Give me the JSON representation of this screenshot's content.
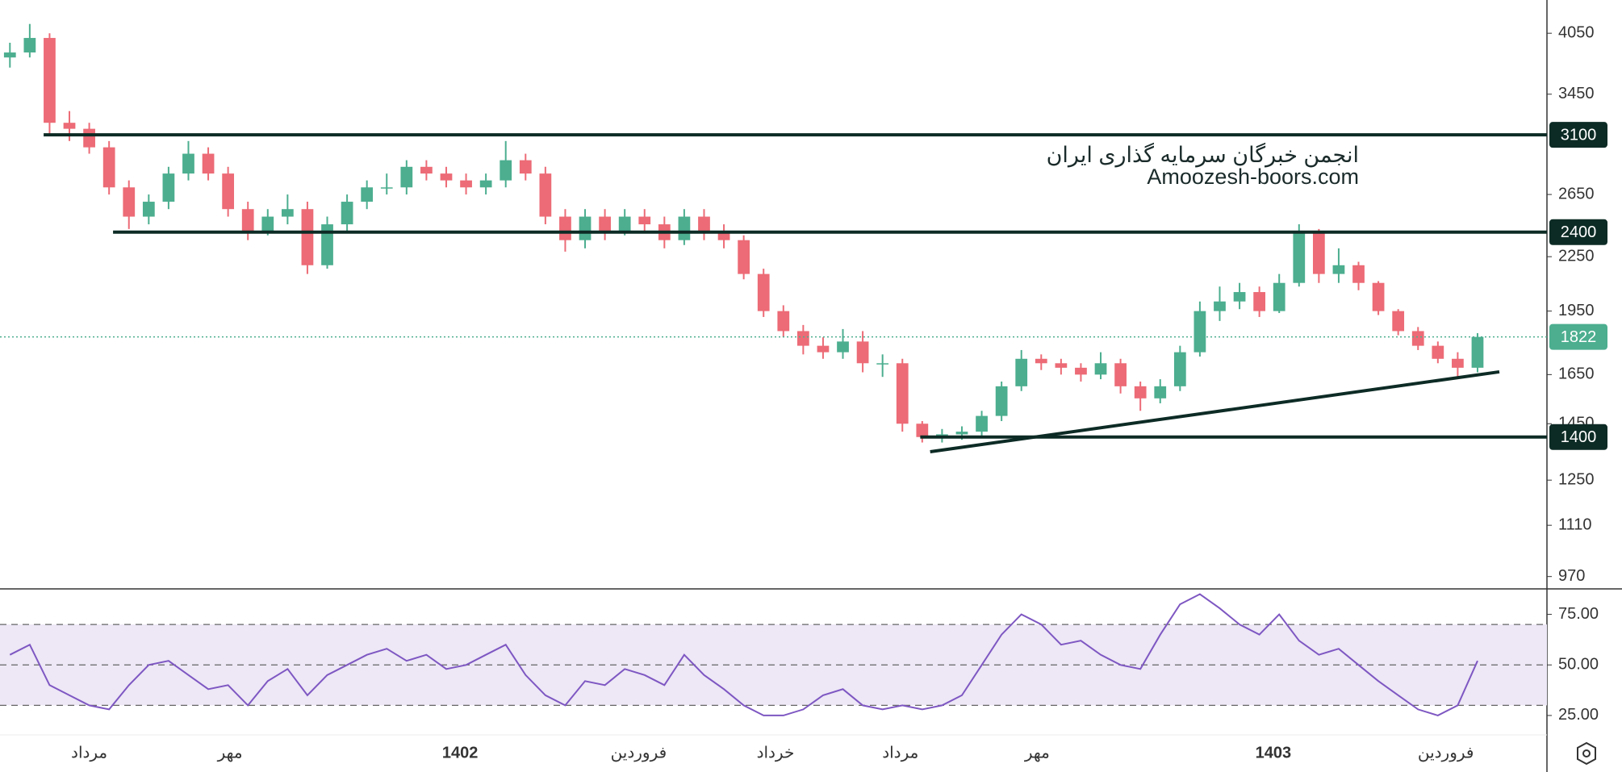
{
  "chart_data": [
    {
      "type": "candlestick",
      "log_scale": true,
      "ylim": [
        943,
        4420
      ],
      "xlim": [
        -0.5,
        77.5
      ],
      "up_color": "#4cae8f",
      "down_color": "#ec6b76",
      "watermark": [
        "انجمن خبرگان سرمایه گذاری ایران",
        "Amoozesh-boors.com"
      ],
      "open": [
        3800,
        3850,
        4000,
        3200,
        3150,
        3000,
        2700,
        2500,
        2600,
        2800,
        2950,
        2800,
        2550,
        2400,
        2500,
        2550,
        2200,
        2450,
        2600,
        2700,
        2700,
        2850,
        2800,
        2750,
        2700,
        2750,
        2900,
        2800,
        2500,
        2350,
        2500,
        2400,
        2500,
        2450,
        2350,
        2500,
        2400,
        2350,
        2150,
        1950,
        1850,
        1780,
        1750,
        1800,
        1700,
        1700,
        1450,
        1400,
        1410,
        1420,
        1480,
        1600,
        1720,
        1700,
        1680,
        1650,
        1700,
        1600,
        1550,
        1600,
        1750,
        1950,
        2000,
        2050,
        1950,
        2100,
        2400,
        2150,
        2200,
        2100,
        1950,
        1850,
        1780,
        1720,
        1680
      ],
      "high": [
        3950,
        4150,
        4050,
        3300,
        3200,
        3050,
        2750,
        2650,
        2850,
        3050,
        3000,
        2850,
        2600,
        2550,
        2650,
        2600,
        2500,
        2650,
        2750,
        2800,
        2900,
        2900,
        2850,
        2800,
        2800,
        3050,
        2950,
        2850,
        2550,
        2550,
        2550,
        2550,
        2550,
        2500,
        2550,
        2550,
        2450,
        2380,
        2180,
        1980,
        1880,
        1820,
        1860,
        1850,
        1740,
        1720,
        1460,
        1430,
        1440,
        1500,
        1620,
        1760,
        1740,
        1720,
        1700,
        1750,
        1720,
        1620,
        1630,
        1780,
        2000,
        2080,
        2100,
        2080,
        2150,
        2450,
        2420,
        2300,
        2220,
        2110,
        1960,
        1870,
        1800,
        1750,
        1840
      ],
      "low": [
        3700,
        3800,
        3100,
        3050,
        2950,
        2650,
        2420,
        2450,
        2550,
        2750,
        2750,
        2500,
        2350,
        2380,
        2450,
        2150,
        2180,
        2400,
        2550,
        2650,
        2650,
        2750,
        2700,
        2650,
        2650,
        2700,
        2750,
        2450,
        2280,
        2300,
        2350,
        2380,
        2400,
        2300,
        2320,
        2350,
        2300,
        2120,
        1920,
        1820,
        1740,
        1720,
        1720,
        1660,
        1640,
        1420,
        1380,
        1380,
        1390,
        1400,
        1460,
        1580,
        1670,
        1650,
        1620,
        1630,
        1570,
        1500,
        1530,
        1580,
        1730,
        1900,
        1960,
        1920,
        1940,
        2080,
        2100,
        2100,
        2060,
        1930,
        1830,
        1760,
        1700,
        1640,
        1660
      ],
      "close": [
        3850,
        4000,
        3200,
        3150,
        3000,
        2700,
        2500,
        2600,
        2800,
        2950,
        2800,
        2550,
        2400,
        2500,
        2550,
        2200,
        2450,
        2600,
        2700,
        2700,
        2850,
        2800,
        2750,
        2700,
        2750,
        2900,
        2800,
        2500,
        2350,
        2500,
        2400,
        2500,
        2450,
        2350,
        2500,
        2400,
        2350,
        2150,
        1950,
        1850,
        1780,
        1750,
        1800,
        1700,
        1700,
        1450,
        1400,
        1410,
        1420,
        1480,
        1600,
        1720,
        1700,
        1680,
        1650,
        1700,
        1600,
        1550,
        1600,
        1750,
        1950,
        2000,
        2050,
        1950,
        2100,
        2400,
        2150,
        2200,
        2100,
        1950,
        1850,
        1780,
        1720,
        1680,
        1822
      ],
      "last_color": "#4cae8f",
      "yticks": [
        4050,
        3450,
        2650,
        2250,
        1950,
        1650,
        1450,
        1250,
        1110,
        970
      ],
      "levels": [
        {
          "value": 3100,
          "from": 1.7
        },
        {
          "value": 2400,
          "from": 5.2
        },
        {
          "value": 1400,
          "from": 45.9
        }
      ],
      "trendline": {
        "x": [
          46.4,
          75.1
        ],
        "y": [
          1347,
          1662
        ]
      },
      "xticks": [
        {
          "value": 4.0,
          "label": "مرداد"
        },
        {
          "value": 11.1,
          "label": "مهر"
        },
        {
          "value": 22.7,
          "label": "1402",
          "bold": true
        },
        {
          "value": 31.7,
          "label": "فروردین"
        },
        {
          "value": 38.6,
          "label": "خرداد"
        },
        {
          "value": 44.9,
          "label": "مرداد"
        },
        {
          "value": 51.8,
          "label": "مهر"
        },
        {
          "value": 63.7,
          "label": "1403",
          "bold": true
        },
        {
          "value": 72.4,
          "label": "فروردین"
        }
      ]
    },
    {
      "type": "line",
      "color": "#7e57c2",
      "ylim": [
        15.8,
        87.2
      ],
      "band": [
        30,
        70
      ],
      "band_color": "#ede7f6",
      "dashed": [
        70,
        50,
        30
      ],
      "yticks": [
        {
          "value": 75,
          "label": "75.00"
        },
        {
          "value": 50,
          "label": "50.00"
        },
        {
          "value": 25,
          "label": "25.00"
        }
      ],
      "values": [
        55,
        60,
        40,
        35,
        30,
        28,
        40,
        50,
        52,
        45,
        38,
        40,
        30,
        42,
        48,
        35,
        45,
        50,
        55,
        58,
        52,
        55,
        48,
        50,
        55,
        60,
        45,
        35,
        30,
        42,
        40,
        48,
        45,
        40,
        55,
        45,
        38,
        30,
        25,
        25,
        28,
        35,
        38,
        30,
        28,
        30,
        28,
        30,
        35,
        50,
        65,
        75,
        70,
        60,
        62,
        55,
        50,
        48,
        65,
        80,
        85,
        78,
        70,
        65,
        75,
        62,
        55,
        58,
        50,
        42,
        35,
        28,
        25,
        30,
        52
      ]
    }
  ]
}
